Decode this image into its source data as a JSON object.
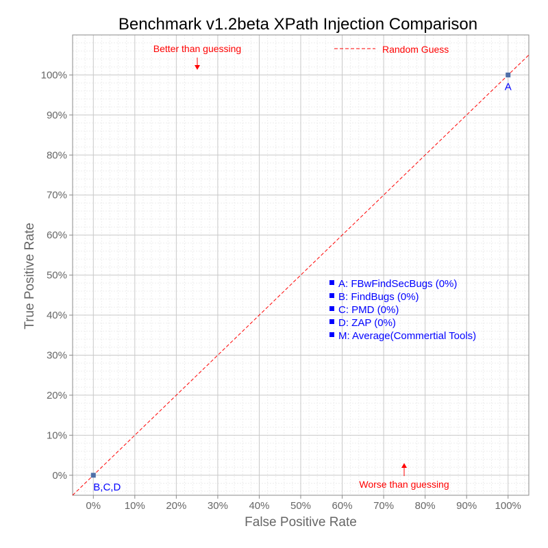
{
  "chart_data": {
    "type": "scatter",
    "title": "Benchmark v1.2beta XPath Injection Comparison",
    "xlabel": "False Positive Rate",
    "ylabel": "True Positive Rate",
    "xlim": [
      -5,
      105
    ],
    "ylim": [
      -5,
      110
    ],
    "x_ticks": [
      "0%",
      "10%",
      "20%",
      "30%",
      "40%",
      "50%",
      "60%",
      "70%",
      "80%",
      "90%",
      "100%"
    ],
    "y_ticks": [
      "0%",
      "10%",
      "20%",
      "30%",
      "40%",
      "50%",
      "60%",
      "70%",
      "80%",
      "90%",
      "100%"
    ],
    "grid": true,
    "series": [
      {
        "label": "A",
        "x": 100,
        "y": 100
      },
      {
        "label": "B,C,D",
        "x": 0,
        "y": 0
      }
    ],
    "reference_line": {
      "name": "Random Guess",
      "style": "dashed",
      "color": "#ff0000"
    },
    "annotations": {
      "better": "Better than guessing",
      "worse": "Worse than guessing"
    },
    "key": [
      "A: FBwFindSecBugs (0%)",
      "B: FindBugs (0%)",
      "C: PMD (0%)",
      "D: ZAP (0%)",
      "M: Average(Commertial Tools)"
    ],
    "legend_position": "top-right",
    "colors": {
      "points": "#4f6fa8",
      "labels": "#0000ff",
      "reference": "#ff0000",
      "grid": "#c8c8c8"
    }
  }
}
